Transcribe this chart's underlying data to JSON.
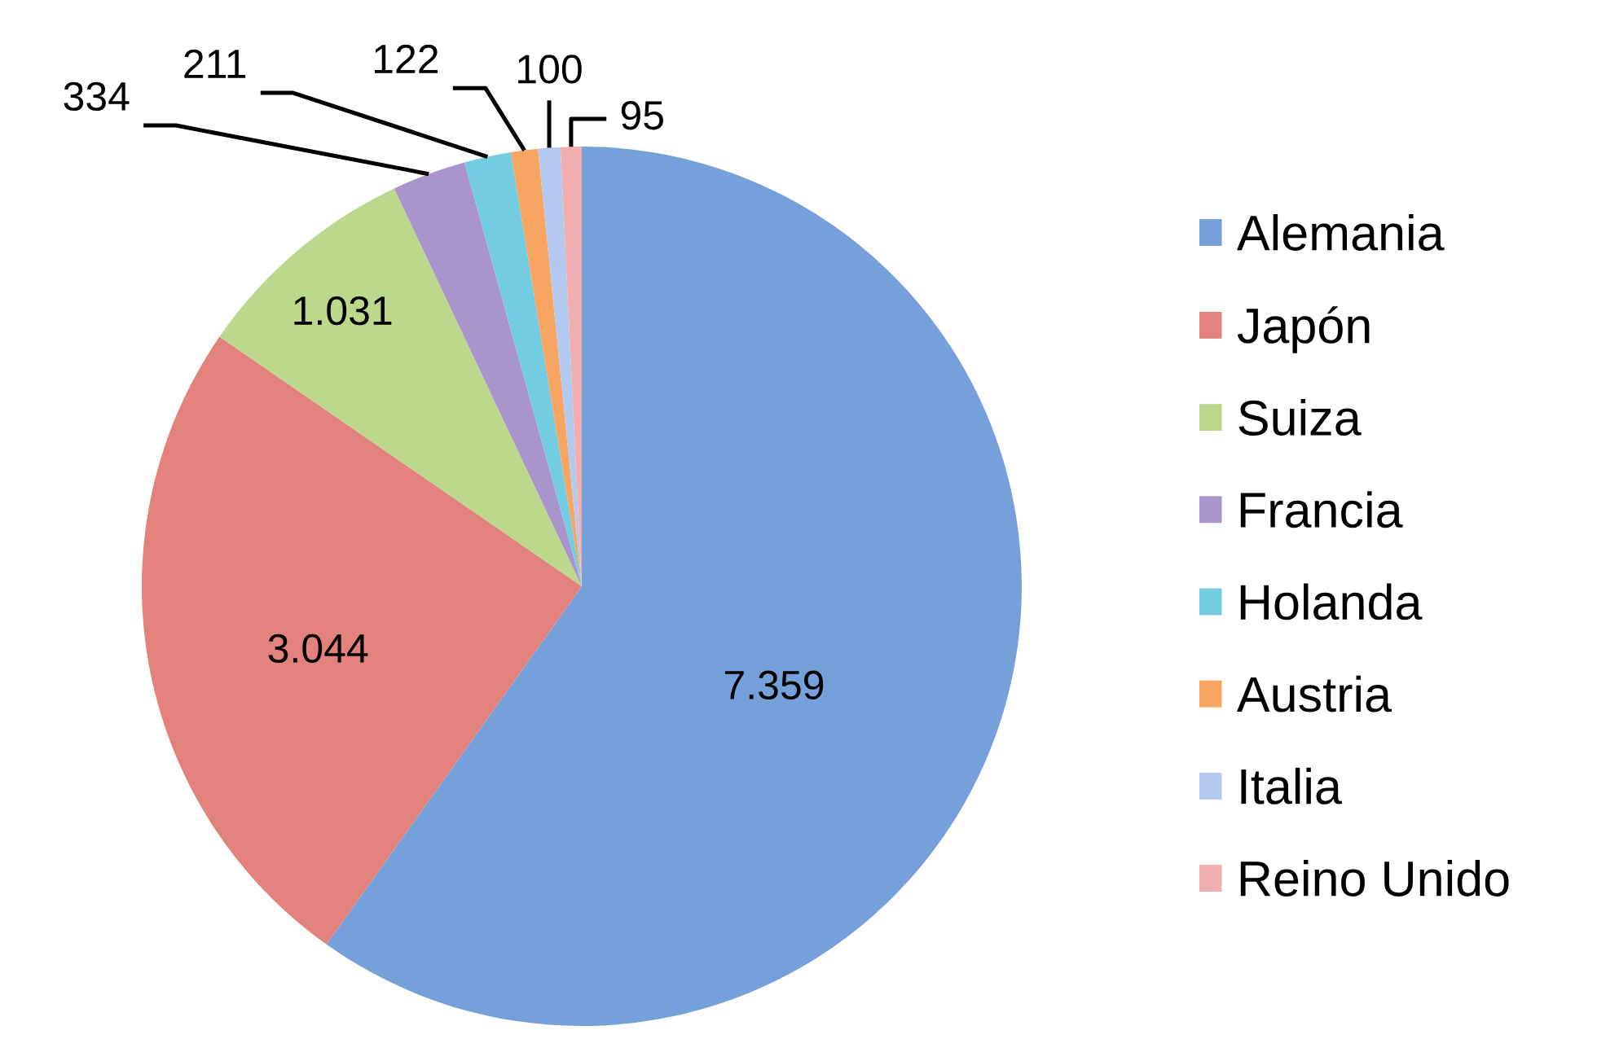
{
  "chart_data": {
    "type": "pie",
    "categories": [
      "Alemania",
      "Japón",
      "Suiza",
      "Francia",
      "Holanda",
      "Austria",
      "Italia",
      "Reino Unido"
    ],
    "values": [
      7359,
      3044,
      1031,
      334,
      211,
      122,
      100,
      95
    ],
    "value_labels": [
      "7.359",
      "3.044",
      "1.031",
      "334",
      "211",
      "122",
      "100",
      "95"
    ],
    "colors": [
      "#76a0da",
      "#e3817d",
      "#bcd88c",
      "#a995cb",
      "#74cce0",
      "#f8a561",
      "#b3c9ef",
      "#f2aeae"
    ],
    "legend": "right"
  }
}
